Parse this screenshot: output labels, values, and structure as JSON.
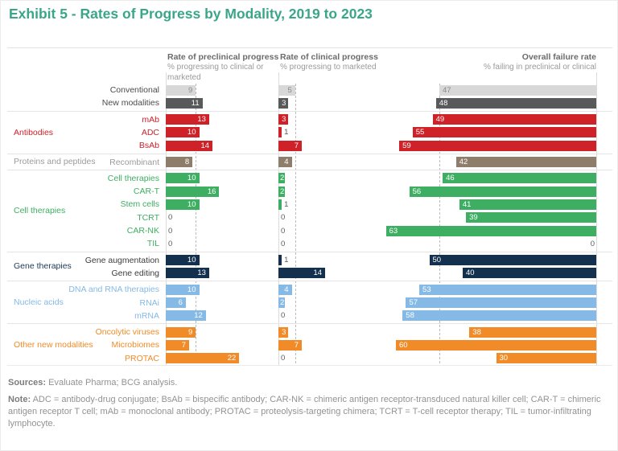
{
  "title": "Exhibit 5 - Rates of Progress by Modality, 2019 to 2023",
  "columns": [
    {
      "title": "Rate of preclinical progress",
      "subtitle": "% progressing to clinical or marketed"
    },
    {
      "title": "Rate of clinical progress",
      "subtitle": "% progressing to marketed"
    },
    {
      "title": "Overall failure rate",
      "subtitle": "% failing in preclinical or clinical"
    }
  ],
  "footer": {
    "sources_label": "Sources:",
    "sources_text": "Evaluate Pharma; BCG analysis.",
    "note_label": "Note:",
    "note_text": "ADC = antibody-drug conjugate; BsAb = bispecific antibody; CAR-NK = chimeric antigen receptor-transduced natural killer cell; CAR-T = chimeric antigen receptor T cell; mAb = monoclonal antibody; PROTAC = proteolysis-targeting chimera; TCRT = T-cell receptor therapy; TIL = tumor-infiltrating lymphocyte."
  },
  "colors": {
    "title_teal": "#3aa689",
    "zero_label": "#5a5a5a",
    "axis_line": "#dcdcdc",
    "benchmark_dash": "#bcbcbc"
  },
  "chart_data": {
    "type": "bar",
    "orientation": "horizontal",
    "unit": "%",
    "metrics": [
      "Rate of preclinical progress (% progressing to clinical or marketed)",
      "Rate of clinical progress (% progressing to marketed)",
      "Overall failure rate (% failing in preclinical or clinical)"
    ],
    "reference_dashed_lines": {
      "preclinical": 9,
      "clinical": 5,
      "failure": 47
    },
    "xlim_per_column": [
      0,
      25,
      0,
      25,
      0,
      65
    ],
    "groups": [
      {
        "label": "",
        "label_color": "#4b4b4b",
        "bar_color": "#58595b",
        "rows": [
          {
            "label": "Conventional",
            "preclinical": 9,
            "clinical": 5,
            "failure": 47,
            "bar_color": "#d8d8d8",
            "value_color": "#8a8a8a",
            "label_color": "#4b4b4b"
          },
          {
            "label": "New modalities",
            "preclinical": 11,
            "clinical": 3,
            "failure": 48,
            "bar_color": "#58595b",
            "label_color": "#4b4b4b"
          }
        ]
      },
      {
        "label": "Antibodies",
        "label_color": "#cb2229",
        "bar_color": "#cf2128",
        "rows": [
          {
            "label": "mAb",
            "preclinical": 13,
            "clinical": 3,
            "failure": 49
          },
          {
            "label": "ADC",
            "preclinical": 10,
            "clinical": 1,
            "failure": 55
          },
          {
            "label": "BsAb",
            "preclinical": 14,
            "clinical": 7,
            "failure": 59
          }
        ]
      },
      {
        "label": "Proteins and peptides",
        "label_color": "#9b9b9b",
        "bar_color": "#8e7d6b",
        "rows": [
          {
            "label": "Recombinant",
            "preclinical": 8,
            "clinical": 4,
            "failure": 42
          }
        ]
      },
      {
        "label": "Cell therapies",
        "label_color": "#3eae62",
        "bar_color": "#3eae62",
        "rows": [
          {
            "label": "Cell therapies",
            "preclinical": 10,
            "clinical": 2,
            "failure": 46
          },
          {
            "label": "CAR-T",
            "preclinical": 16,
            "clinical": 2,
            "failure": 56
          },
          {
            "label": "Stem cells",
            "preclinical": 10,
            "clinical": 1,
            "failure": 41
          },
          {
            "label": "TCRT",
            "preclinical": 0,
            "clinical": 0,
            "failure": 39
          },
          {
            "label": "CAR-NK",
            "preclinical": 0,
            "clinical": 0,
            "failure": 63
          },
          {
            "label": "TIL",
            "preclinical": 0,
            "clinical": 0,
            "failure": 0
          }
        ]
      },
      {
        "label": "Gene therapies",
        "label_color": "#1d3a55",
        "bar_color": "#13304f",
        "rows": [
          {
            "label": "Gene augmentation",
            "preclinical": 10,
            "clinical": 1,
            "failure": 50,
            "label_color": "#3c3c3c"
          },
          {
            "label": "Gene editing",
            "preclinical": 13,
            "clinical": 14,
            "failure": 40,
            "label_color": "#3c3c3c"
          }
        ]
      },
      {
        "label": "Nucleic acids",
        "label_color": "#85b9e6",
        "bar_color": "#85b9e6",
        "rows": [
          {
            "label": "DNA and RNA therapies",
            "preclinical": 10,
            "clinical": 4,
            "failure": 53
          },
          {
            "label": "RNAi",
            "preclinical": 6,
            "clinical": 2,
            "failure": 57
          },
          {
            "label": "mRNA",
            "preclinical": 12,
            "clinical": 0,
            "failure": 58
          }
        ]
      },
      {
        "label": "Other new modalities",
        "label_color": "#f08b28",
        "bar_color": "#f08b28",
        "rows": [
          {
            "label": "Oncolytic viruses",
            "preclinical": 9,
            "clinical": 3,
            "failure": 38
          },
          {
            "label": "Microbiomes",
            "preclinical": 7,
            "clinical": 7,
            "failure": 60
          },
          {
            "label": "PROTAC",
            "preclinical": 22,
            "clinical": 0,
            "failure": 30
          }
        ]
      }
    ]
  }
}
